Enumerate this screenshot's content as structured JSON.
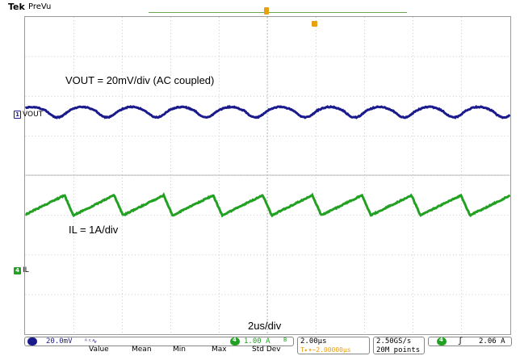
{
  "header": {
    "brand": "Tek",
    "mode": "PreVu"
  },
  "channels": {
    "ch1": {
      "number": "1",
      "name": "VOUT",
      "color": "#1a1a8c"
    },
    "ch4": {
      "number": "4",
      "name": "IL",
      "color": "#22a022"
    }
  },
  "annotations": {
    "vout_note": "VOUT = 20mV/div (AC coupled)",
    "il_note": "IL = 1A/div",
    "time_note": "2us/div"
  },
  "settings": {
    "ch1_scale": "20.0mV",
    "ch1_badge": "1",
    "ch4_badge": "4",
    "ch4_scale": "1.00 A",
    "ch4_bw": "B",
    "timebase": "2.00µs",
    "position": "T▸▾−2.00000µs",
    "sample_rate": "2.50GS/s",
    "record_length": "20M points",
    "trigger_source": "4",
    "trigger_slope": "ʃ",
    "trigger_level": "2.06 A"
  },
  "measurement_table": {
    "columns": [
      "Value",
      "Mean",
      "Min",
      "Max",
      "Std Dev"
    ]
  },
  "colors": {
    "vout_trace": "#1a1a8c",
    "il_trace": "#22a022",
    "trigger": "#e8a010",
    "grid": "#9a9a9a"
  }
}
